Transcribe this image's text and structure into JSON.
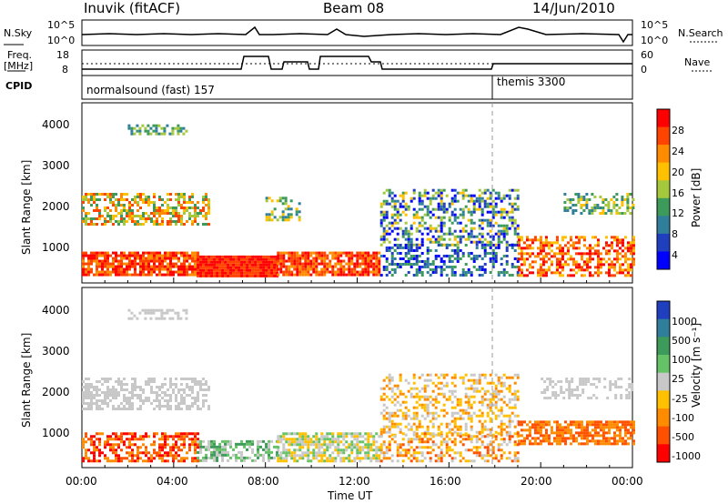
{
  "header": {
    "station": "Inuvik (fitACF)",
    "beam": "Beam 08",
    "date": "14/Jun/2010"
  },
  "top_panels": {
    "nsky_label": "N.Sky",
    "nsky_ticks": [
      "10^5",
      "10^0"
    ],
    "nsearch_label": "N.Search",
    "nsearch_ticks": [
      "10^5",
      "10^0"
    ],
    "freq_label": "Freq.",
    "freq_unit": "[MHz]",
    "freq_ticks": [
      "18",
      "8"
    ],
    "nave_label": "Nave",
    "nave_ticks": [
      "60",
      "0"
    ],
    "cpid_label": "CPID",
    "cpid_modes": [
      {
        "name": "normalsound (fast) 157",
        "start_hr": 0
      },
      {
        "name": "themis 3300",
        "start_hr": 18
      }
    ]
  },
  "chart_data": [
    {
      "type": "heatmap",
      "panel": "power",
      "ylabel": "Slant Range [km]",
      "xlabel": "",
      "yticks": [
        1000,
        2000,
        3000,
        4000
      ],
      "xlim": [
        0,
        24
      ],
      "colorbar_label": "Power [dB]",
      "colorbar_ticks": [
        "28",
        "24",
        "20",
        "16",
        "12",
        "8",
        "4"
      ],
      "colorbar_colors": [
        "#ff0000",
        "#ff4400",
        "#ff8c00",
        "#ffc000",
        "#a6c83c",
        "#3c9a5a",
        "#2f7f9a",
        "#1f3fbf",
        "#0000ff"
      ]
    },
    {
      "type": "heatmap",
      "panel": "velocity",
      "ylabel": "Slant Range [km]",
      "xlabel": "Time UT",
      "yticks": [
        1000,
        2000,
        3000,
        4000
      ],
      "xticks": [
        "00:00",
        "04:00",
        "08:00",
        "12:00",
        "16:00",
        "20:00",
        "00:00"
      ],
      "xlim": [
        0,
        24
      ],
      "colorbar_label": "Velocity [m s⁻¹]",
      "colorbar_ticks": [
        "1000",
        "500",
        "100",
        "25",
        "-25",
        "-100",
        "-500",
        "-1000"
      ],
      "colorbar_colors": [
        "#1f3fbf",
        "#2f7f9a",
        "#3c9a5a",
        "#66c266",
        "#c8c8c8",
        "#ffc000",
        "#ff8c00",
        "#ff5000",
        "#ff0000"
      ]
    }
  ]
}
